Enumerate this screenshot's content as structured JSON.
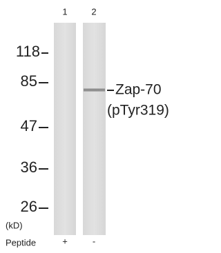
{
  "lanes": [
    {
      "label": "1",
      "peptide": "+"
    },
    {
      "label": "2",
      "peptide": "-"
    }
  ],
  "markers": [
    {
      "label": "118"
    },
    {
      "label": "85"
    },
    {
      "label": "47"
    },
    {
      "label": "36"
    },
    {
      "label": "26"
    }
  ],
  "unit": "(kD)",
  "peptide_label": "Peptide",
  "band": {
    "name": "Zap-70",
    "site": "(pTyr319)"
  }
}
